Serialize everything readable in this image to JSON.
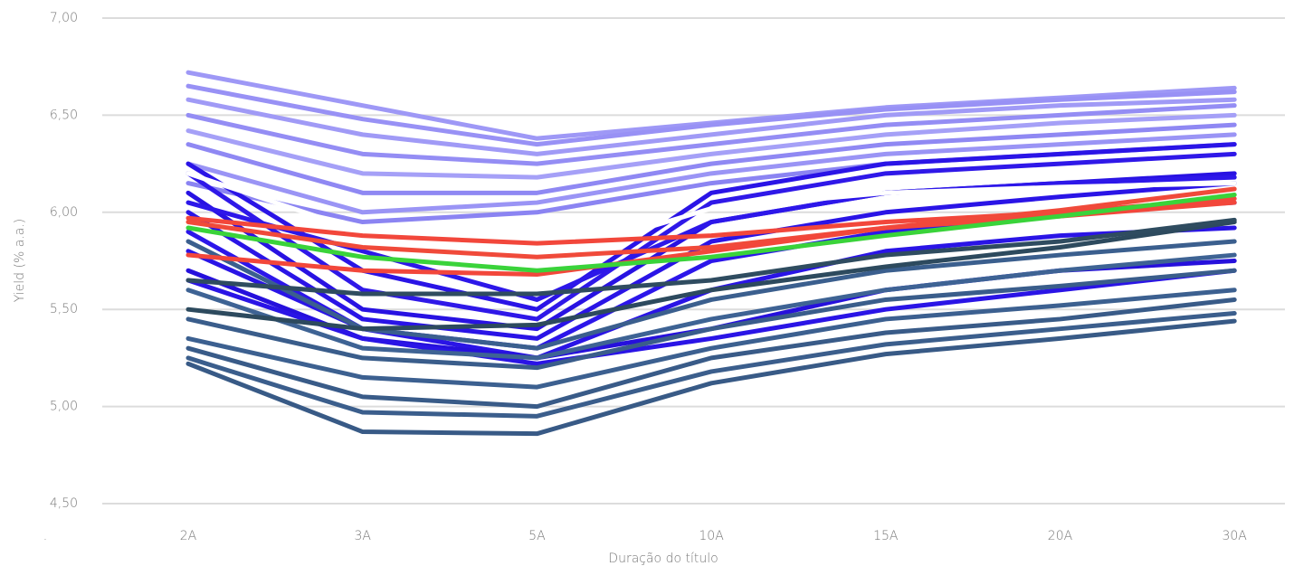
{
  "chart_data": {
    "type": "line",
    "y_label": "Yield (% a.a.)",
    "x_label": "Duração do título",
    "footnote": ".",
    "categories": [
      "2A",
      "3A",
      "5A",
      "10A",
      "15A",
      "20A",
      "30A"
    ],
    "ylim": [
      4.5,
      7.0
    ],
    "yticks": [
      {
        "value": 4.5,
        "label": "4,50"
      },
      {
        "value": 5.0,
        "label": "5,00"
      },
      {
        "value": 5.5,
        "label": "5,50"
      },
      {
        "value": 6.0,
        "label": "6,00"
      },
      {
        "value": 6.5,
        "label": "6,50"
      },
      {
        "value": 7.0,
        "label": "7,00"
      }
    ],
    "grid": true,
    "series": [
      {
        "color": "#9e98f6",
        "values": [
          6.72,
          6.55,
          6.38,
          6.46,
          6.54,
          6.59,
          6.64
        ]
      },
      {
        "color": "#9891f5",
        "values": [
          6.65,
          6.48,
          6.35,
          6.45,
          6.53,
          6.58,
          6.62
        ]
      },
      {
        "color": "#a09af6",
        "values": [
          6.58,
          6.4,
          6.3,
          6.4,
          6.5,
          6.55,
          6.58
        ]
      },
      {
        "color": "#948df4",
        "values": [
          6.5,
          6.3,
          6.25,
          6.35,
          6.45,
          6.5,
          6.55
        ]
      },
      {
        "color": "#a5a0f7",
        "values": [
          6.42,
          6.2,
          6.18,
          6.3,
          6.4,
          6.46,
          6.5
        ]
      },
      {
        "color": "#8f88f3",
        "values": [
          6.35,
          6.1,
          6.1,
          6.25,
          6.35,
          6.4,
          6.45
        ]
      },
      {
        "color": "#9a94f5",
        "values": [
          6.25,
          6.0,
          6.05,
          6.2,
          6.3,
          6.35,
          6.4
        ]
      },
      {
        "color": "#8b84f2",
        "values": [
          6.15,
          5.95,
          6.0,
          6.15,
          6.25,
          6.3,
          6.35
        ]
      },
      {
        "color": "#2a14e6",
        "values": [
          6.25,
          5.7,
          5.5,
          6.1,
          6.25,
          6.3,
          6.35
        ]
      },
      {
        "color": "#2f18e8",
        "values": [
          6.2,
          5.6,
          5.45,
          6.05,
          6.2,
          6.25,
          6.3
        ]
      },
      {
        "color": "#2812e2",
        "values": [
          6.1,
          5.5,
          5.4,
          5.95,
          6.1,
          6.15,
          6.2
        ]
      },
      {
        "color": "#2a14e6",
        "values": [
          6.0,
          5.45,
          5.35,
          5.85,
          6.0,
          6.08,
          6.15
        ]
      },
      {
        "color": "#2c16ea",
        "values": [
          5.9,
          5.4,
          5.3,
          5.75,
          5.9,
          6.0,
          6.05
        ]
      },
      {
        "color": "#2a14e6",
        "values": [
          5.8,
          5.4,
          5.25,
          5.6,
          5.8,
          5.88,
          5.92
        ]
      },
      {
        "color": "#2610dc",
        "values": [
          5.7,
          5.35,
          5.25,
          5.4,
          5.6,
          5.7,
          5.75
        ]
      },
      {
        "color": "#2a14e6",
        "values": [
          5.65,
          5.35,
          5.22,
          5.35,
          5.5,
          5.6,
          5.7
        ]
      },
      {
        "color": "#2d17e9",
        "values": [
          6.05,
          5.8,
          5.55,
          5.95,
          6.1,
          6.15,
          6.18
        ]
      },
      {
        "color": "#3b5f8e",
        "values": [
          5.85,
          5.4,
          5.3,
          5.55,
          5.7,
          5.78,
          5.85
        ]
      },
      {
        "color": "#3e6394",
        "values": [
          5.6,
          5.3,
          5.25,
          5.45,
          5.6,
          5.7,
          5.78
        ]
      },
      {
        "color": "#3a5d8b",
        "values": [
          5.45,
          5.25,
          5.2,
          5.4,
          5.55,
          5.62,
          5.7
        ]
      },
      {
        "color": "#3c6090",
        "values": [
          5.35,
          5.15,
          5.1,
          5.3,
          5.45,
          5.52,
          5.6
        ]
      },
      {
        "color": "#395b88",
        "values": [
          5.3,
          5.05,
          5.0,
          5.25,
          5.38,
          5.45,
          5.55
        ]
      },
      {
        "color": "#3b5e8c",
        "values": [
          5.25,
          4.97,
          4.95,
          5.18,
          5.32,
          5.4,
          5.48
        ]
      },
      {
        "color": "#385a86",
        "values": [
          5.22,
          4.87,
          4.86,
          5.12,
          5.27,
          5.35,
          5.44
        ]
      },
      {
        "color": "#2d4a5e",
        "values": [
          5.5,
          5.4,
          5.42,
          5.6,
          5.72,
          5.82,
          5.95
        ]
      },
      {
        "color": "#2f4c60",
        "values": [
          5.65,
          5.58,
          5.58,
          5.65,
          5.78,
          5.85,
          5.96
        ]
      },
      {
        "color": "#ffffff",
        "values": [
          6.2,
          5.9,
          5.75,
          6.02,
          6.1,
          6.13,
          6.15
        ]
      },
      {
        "color": "#f2473b",
        "values": [
          5.97,
          5.88,
          5.84,
          5.88,
          5.95,
          6.0,
          6.07
        ]
      },
      {
        "color": "#f04a3a",
        "values": [
          5.95,
          5.82,
          5.77,
          5.82,
          5.92,
          6.01,
          6.12
        ]
      },
      {
        "color": "#f2473b",
        "values": [
          5.78,
          5.7,
          5.68,
          5.8,
          5.92,
          5.98,
          6.05
        ]
      },
      {
        "color": "#3ad33a",
        "values": [
          5.92,
          5.77,
          5.7,
          5.77,
          5.88,
          5.98,
          6.09
        ]
      }
    ]
  }
}
